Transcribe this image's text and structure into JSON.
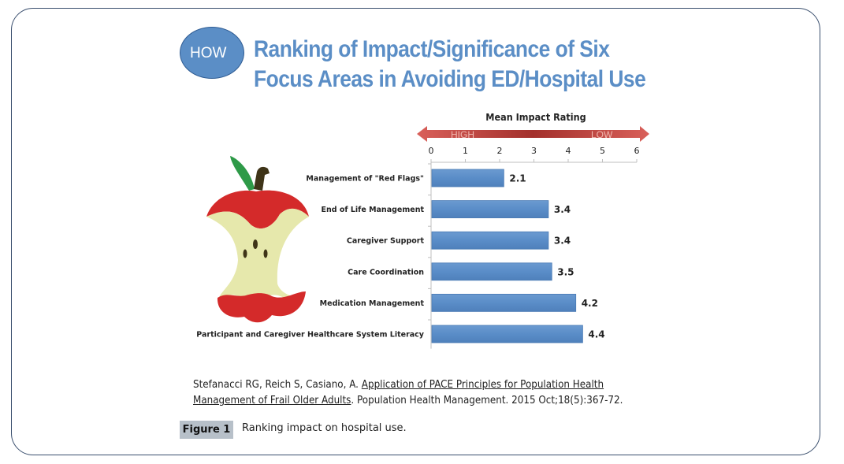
{
  "header": {
    "badge": "HOW",
    "title_line1": "Ranking of Impact/Significance of Six",
    "title_line2": "Focus Areas in Avoiding ED/Hospital Use"
  },
  "colors": {
    "bar": "#5b8ec6",
    "title": "#5b8ec6",
    "arrow": "#c0504d"
  },
  "chart_data": {
    "type": "bar",
    "orientation": "horizontal",
    "title": "Mean Impact Rating",
    "scale_labels": {
      "left": "HIGH",
      "right": "LOW"
    },
    "categories": [
      "Management of \"Red Flags\"",
      "End of Life Management",
      "Caregiver Support",
      "Care Coordination",
      "Medication Management",
      "Participant and Caregiver Healthcare System Literacy"
    ],
    "values": [
      2.1,
      3.4,
      3.4,
      3.5,
      4.2,
      4.4
    ],
    "value_labels": [
      "2.1",
      "3.4",
      "3.4",
      "3.5",
      "4.2",
      "4.4"
    ],
    "xlim": [
      0,
      6
    ],
    "xticks": [
      "0",
      "1",
      "2",
      "3",
      "4",
      "5",
      "6"
    ],
    "xlabel": "",
    "ylabel": "",
    "grid": false
  },
  "citation": {
    "authors": "Stefanacci RG, Reich S, Casiano, A. ",
    "link_part1": "Application of PACE Principles for Population Health",
    "link_part2": "Management of Frail Older Adults",
    "rest": ". Population Health Management.  2015 Oct;18(5):367-72."
  },
  "figure": {
    "label": "Figure 1",
    "caption": "Ranking impact on hospital use."
  }
}
